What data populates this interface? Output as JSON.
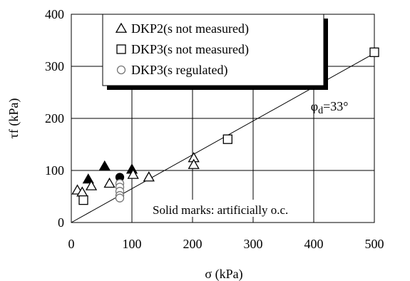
{
  "chart_data": {
    "type": "scatter",
    "xlabel": "σ (kPa)",
    "ylabel": "τf (kPa)",
    "xlim": [
      0,
      500
    ],
    "ylim": [
      0,
      400
    ],
    "xticks": [
      "0",
      "100",
      "200",
      "300",
      "400",
      "500"
    ],
    "yticks": [
      "0",
      "100",
      "200",
      "300",
      "400"
    ],
    "grid": true,
    "legend_position": "top-center",
    "reference_line": {
      "label": "φd=33°",
      "label_main": "φ",
      "label_sub": "d",
      "label_rest": "=33°",
      "x": [
        0,
        500
      ],
      "y": [
        0,
        325
      ]
    },
    "annotation": "Solid marks: artificially o.c.",
    "series": [
      {
        "name": "DKP2(s not measured)",
        "marker": "triangle",
        "points": [
          {
            "x": 10,
            "y": 62,
            "filled": false
          },
          {
            "x": 18,
            "y": 58,
            "filled": false
          },
          {
            "x": 28,
            "y": 83,
            "filled": true
          },
          {
            "x": 33,
            "y": 70,
            "filled": false
          },
          {
            "x": 55,
            "y": 108,
            "filled": true
          },
          {
            "x": 63,
            "y": 75,
            "filled": false
          },
          {
            "x": 100,
            "y": 102,
            "filled": true
          },
          {
            "x": 102,
            "y": 92,
            "filled": false
          },
          {
            "x": 128,
            "y": 87,
            "filled": false
          },
          {
            "x": 202,
            "y": 124,
            "filled": false
          },
          {
            "x": 202,
            "y": 111,
            "filled": false
          }
        ]
      },
      {
        "name": "DKP3(s not measured)",
        "marker": "square",
        "points": [
          {
            "x": 20,
            "y": 43,
            "filled": false
          },
          {
            "x": 258,
            "y": 160,
            "filled": false
          },
          {
            "x": 500,
            "y": 327,
            "filled": false
          }
        ]
      },
      {
        "name": "DKP3(s regulated)",
        "marker": "circle",
        "points": [
          {
            "x": 80,
            "y": 87,
            "filled": true
          },
          {
            "x": 80,
            "y": 75,
            "filled": false
          },
          {
            "x": 80,
            "y": 68,
            "filled": false
          },
          {
            "x": 80,
            "y": 60,
            "filled": false
          },
          {
            "x": 80,
            "y": 52,
            "filled": false
          },
          {
            "x": 80,
            "y": 47,
            "filled": false
          }
        ]
      }
    ]
  }
}
